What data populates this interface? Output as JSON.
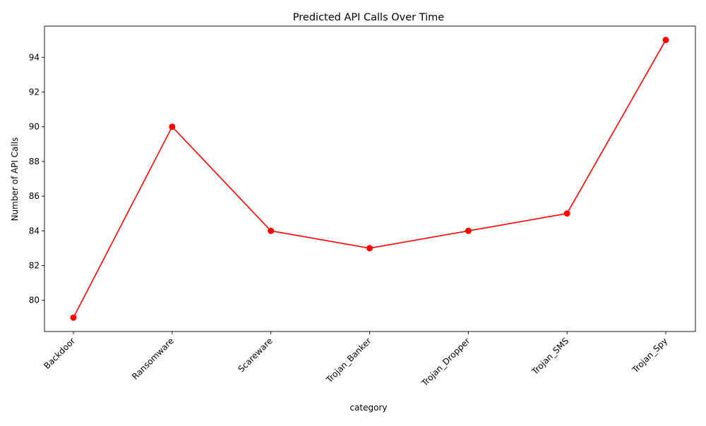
{
  "chart_data": {
    "type": "line",
    "title": "Predicted API Calls Over Time",
    "xlabel": "category",
    "ylabel": "Number of API Calls",
    "categories": [
      "Backdoor",
      "Ransomware",
      "Scareware",
      "Trojan_Banker",
      "Trojan_Dropper",
      "Trojan_SMS",
      "Trojan_Spy"
    ],
    "series": [
      {
        "values": [
          79,
          90,
          84,
          83,
          84,
          85,
          95
        ],
        "color": "#ff0000",
        "marker": "circle"
      }
    ],
    "ylim": [
      78.2,
      95.8
    ],
    "yticks": [
      80,
      82,
      84,
      86,
      88,
      90,
      92,
      94
    ],
    "ytick_labels": [
      "80",
      "82",
      "84",
      "86",
      "88",
      "90",
      "92",
      "94"
    ],
    "xtick_rotation": 45,
    "grid": false,
    "legend": "none"
  }
}
